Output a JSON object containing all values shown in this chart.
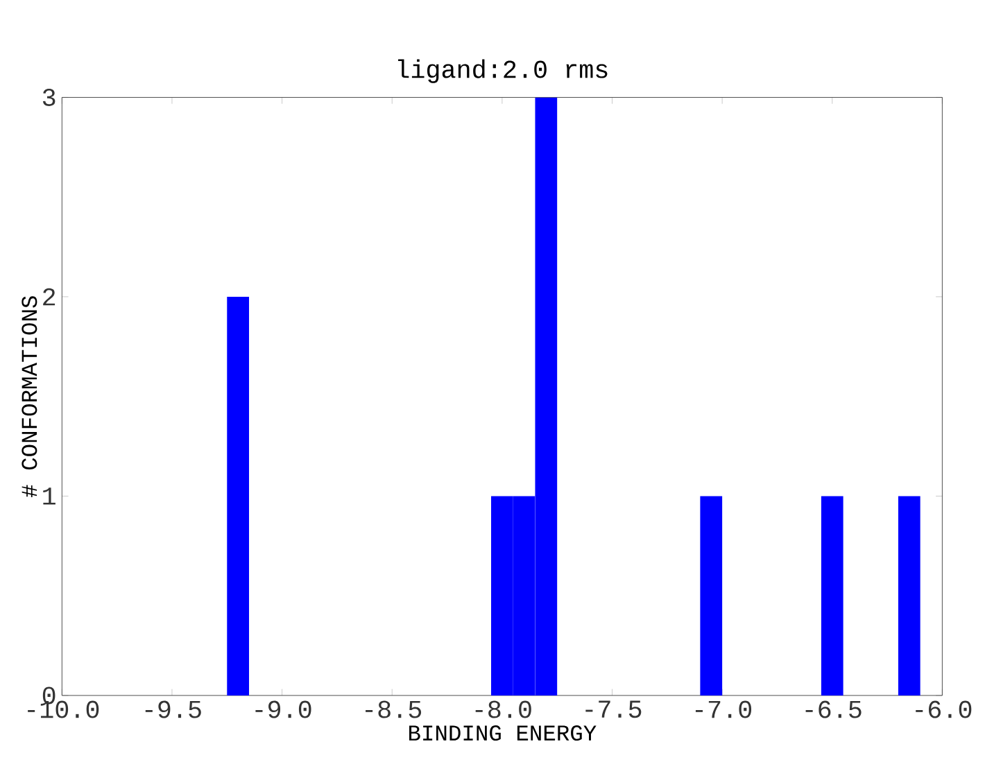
{
  "chart_data": {
    "type": "histogram",
    "title": "ligand:2.0 rms",
    "xlabel": "BINDING ENERGY",
    "ylabel": "# CONFORMATIONS",
    "bins": [
      -9.25,
      -9.15,
      -8.05,
      -7.95,
      -7.85,
      -7.75,
      -7.1,
      -7,
      -6.55,
      -6.45,
      -6.2,
      -6.1
    ],
    "values": [
      2,
      0,
      1,
      1,
      3,
      0,
      1,
      0,
      1,
      0,
      1
    ],
    "color": "#0000ff",
    "xlim": [
      -10,
      -6
    ],
    "xticks": [
      {
        "value": -10,
        "label": "-10.0"
      },
      {
        "value": -9.5,
        "label": "-9.5"
      },
      {
        "value": -9,
        "label": "-9.0"
      },
      {
        "value": -8.5,
        "label": "-8.5"
      },
      {
        "value": -8,
        "label": "-8.0"
      },
      {
        "value": -7.5,
        "label": "-7.5"
      },
      {
        "value": -7,
        "label": "-7.0"
      },
      {
        "value": -6.5,
        "label": "-6.5"
      },
      {
        "value": -6,
        "label": "-6.0"
      }
    ],
    "ylim": [
      0,
      3
    ],
    "yticks": [
      0,
      1,
      2,
      3
    ],
    "grid": false
  }
}
